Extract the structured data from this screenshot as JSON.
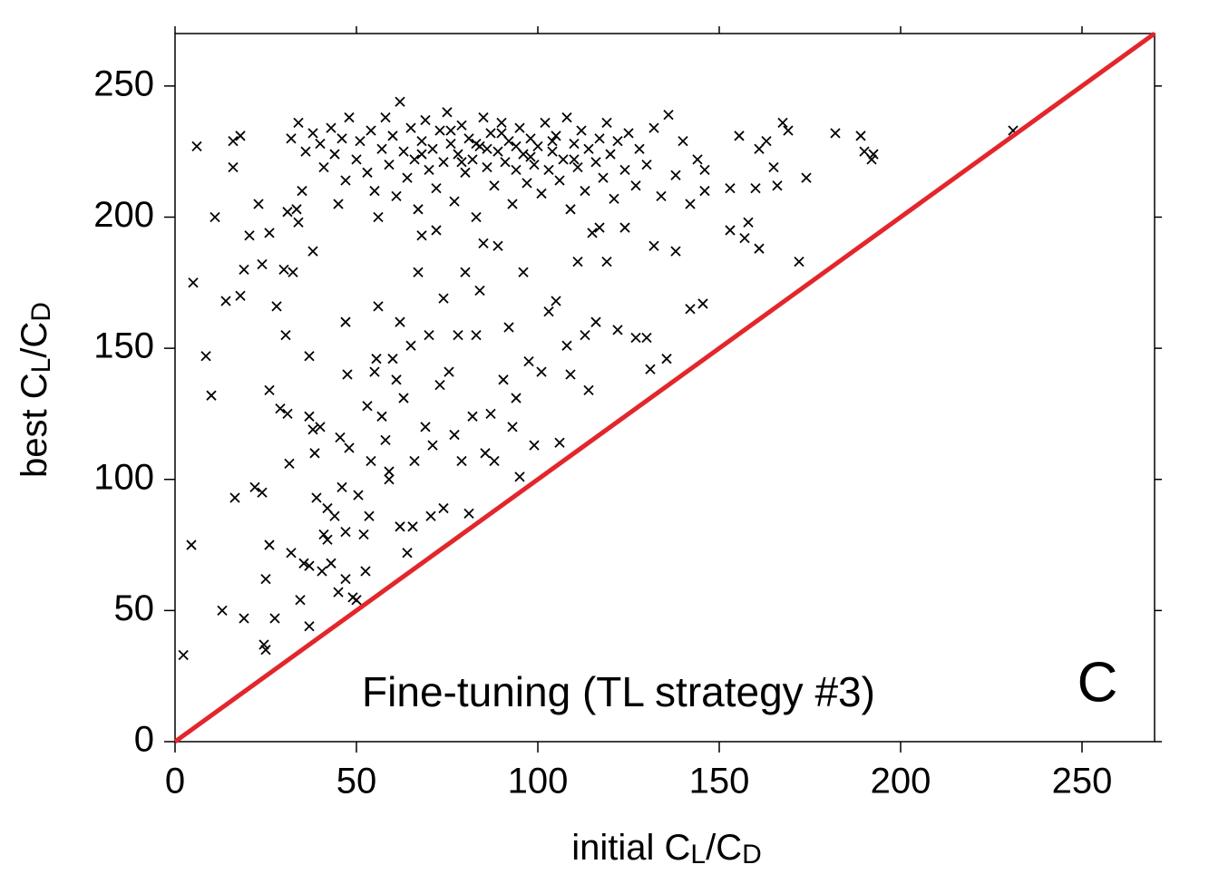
{
  "chart_data": {
    "type": "scatter",
    "xlabel": [
      {
        "text": "initial C"
      },
      {
        "text": "L",
        "sub": true
      },
      {
        "text": "/C"
      },
      {
        "text": "D",
        "sub": true
      }
    ],
    "ylabel": [
      {
        "text": "best C"
      },
      {
        "text": "L",
        "sub": true
      },
      {
        "text": "/C"
      },
      {
        "text": "D",
        "sub": true
      }
    ],
    "annotations": [
      "Fine-tuning (TL strategy #3)",
      "C"
    ],
    "xlim": [
      0,
      270
    ],
    "ylim": [
      0,
      270
    ],
    "xticks": [
      0,
      50,
      100,
      150,
      200,
      250
    ],
    "yticks": [
      0,
      50,
      100,
      150,
      200,
      250
    ],
    "color": "#000000",
    "marker": "x",
    "reference_line": {
      "x": [
        0,
        270
      ],
      "y": [
        0,
        270
      ],
      "color": "#e3262b"
    },
    "x": [
      32,
      34,
      36,
      38,
      40,
      41,
      43,
      44,
      46,
      47,
      48,
      50,
      51,
      53,
      54,
      55,
      57,
      58,
      59,
      60,
      61,
      62,
      63,
      64,
      65,
      66,
      67,
      68,
      69,
      70,
      71,
      72,
      73,
      74,
      75,
      76,
      77,
      78,
      79,
      80,
      81,
      82,
      83,
      84,
      85,
      86,
      87,
      88,
      89,
      90,
      91,
      92,
      93,
      94,
      95,
      96,
      97,
      98,
      99,
      100,
      101,
      102,
      103,
      104,
      105,
      106,
      107,
      108,
      109,
      110,
      111,
      112,
      113,
      114,
      115,
      116,
      117,
      118,
      119,
      120,
      121,
      122,
      124,
      125,
      127,
      128,
      130,
      132,
      134,
      136,
      138,
      140,
      142,
      144,
      146,
      35,
      45,
      56,
      72,
      85,
      90,
      86,
      83,
      79,
      94,
      98,
      104,
      76,
      68,
      110,
      2.3,
      4.5,
      5,
      6,
      8.5,
      10,
      11,
      13,
      14,
      16.5,
      16,
      16,
      18,
      19,
      18,
      19,
      20.5,
      22,
      23,
      24,
      24,
      24.5,
      25,
      26,
      25,
      26,
      26,
      27.5,
      28,
      29,
      30,
      31,
      31.5,
      30.5,
      31,
      32,
      32.5,
      33.5,
      34,
      34.5,
      35.5,
      37,
      37,
      37,
      37,
      38,
      38.5,
      39,
      40,
      38,
      40.5,
      41,
      42,
      42,
      43,
      44,
      45,
      45.5,
      47,
      48,
      47.5,
      46,
      47,
      47,
      49,
      50,
      50.5,
      52,
      52.5,
      53,
      53.5,
      54,
      55,
      55.5,
      56,
      57,
      58,
      59,
      59,
      60,
      61,
      62,
      62,
      63,
      64,
      65,
      65.5,
      66,
      67,
      68,
      69,
      70,
      70.5,
      71,
      73,
      74,
      74,
      75.5,
      77,
      78,
      79,
      80,
      81,
      82,
      83,
      84,
      85.5,
      87,
      88,
      89,
      90.5,
      92,
      93,
      94,
      95,
      96,
      97.5,
      99,
      101,
      103,
      105,
      106,
      108,
      109,
      111,
      113,
      114,
      116,
      117,
      119,
      122,
      124,
      127,
      130,
      131,
      135.5,
      132,
      138,
      142,
      145.5,
      146,
      153,
      153,
      155.5,
      157,
      158,
      160,
      161,
      161,
      163,
      165,
      166,
      167.5,
      169,
      172,
      174,
      182,
      189,
      190,
      192,
      192.5,
      231
    ],
    "values": [
      230,
      236,
      225,
      232,
      228,
      219,
      234,
      224,
      230,
      214,
      238,
      222,
      229,
      217,
      233,
      210,
      226,
      238,
      220,
      231,
      208,
      244,
      225,
      215,
      234,
      222,
      203,
      229,
      237,
      218,
      226,
      211,
      233,
      221,
      240,
      228,
      206,
      224,
      235,
      217,
      230,
      222,
      200,
      227,
      238,
      219,
      232,
      212,
      225,
      236,
      221,
      229,
      205,
      218,
      234,
      224,
      213,
      230,
      220,
      227,
      209,
      236,
      218,
      225,
      231,
      214,
      222,
      238,
      203,
      228,
      219,
      233,
      210,
      226,
      194,
      221,
      230,
      215,
      236,
      224,
      207,
      229,
      218,
      232,
      212,
      226,
      220,
      234,
      208,
      239,
      216,
      229,
      205,
      222,
      218,
      210,
      205,
      200,
      195,
      190,
      232,
      226,
      228,
      221,
      227,
      223,
      229,
      233,
      224,
      222,
      33,
      75,
      175,
      227,
      147,
      132,
      200,
      50,
      168,
      93,
      219,
      229,
      231,
      47,
      170,
      180,
      193,
      97,
      205,
      95,
      182,
      37,
      35,
      75,
      62,
      134,
      194,
      47,
      166,
      127,
      180,
      125,
      106,
      155,
      202,
      72,
      179,
      203,
      198,
      54,
      68,
      44,
      147,
      124,
      67,
      119,
      110,
      93,
      120,
      187,
      65,
      79,
      77,
      89,
      68,
      86,
      57,
      116,
      160,
      112,
      140,
      97,
      62,
      80,
      55,
      54,
      94,
      79,
      65,
      128,
      86,
      107,
      141,
      146,
      166,
      124,
      115,
      103,
      100,
      146,
      138,
      82,
      160,
      131,
      72,
      151,
      82,
      107,
      179,
      193,
      120,
      155,
      86,
      113,
      136,
      89,
      169,
      141,
      117,
      155,
      107,
      179,
      87,
      124,
      155,
      172,
      110,
      125,
      107,
      189,
      138,
      158,
      120,
      131,
      101,
      179,
      145,
      113,
      141,
      164,
      168,
      114,
      151,
      140,
      183,
      155,
      134,
      160,
      196,
      183,
      157,
      196,
      154,
      154,
      142,
      146,
      189,
      187,
      165,
      167,
      210,
      211,
      195,
      231,
      192,
      198,
      211,
      188,
      226,
      229,
      219,
      212,
      236,
      233,
      183,
      215,
      232,
      231,
      225,
      222,
      224,
      233
    ]
  }
}
